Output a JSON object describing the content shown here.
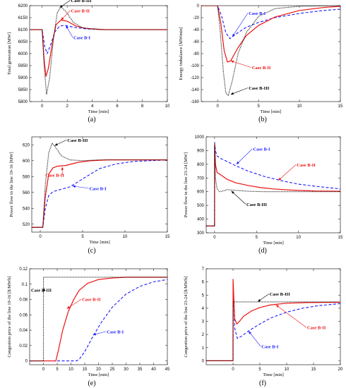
{
  "series_styles": [
    {
      "name": "Case B-I",
      "color": "#1a1aff",
      "dash": "4,2.5",
      "width": 1.1
    },
    {
      "name": "Case B-II",
      "color": "#ee1111",
      "dash": "",
      "width": 1.2
    },
    {
      "name": "Case B-III",
      "color": "#000000",
      "dash": "1,1.2",
      "width": 1.1
    }
  ],
  "chart_data": [
    {
      "id": "a",
      "type": "line",
      "panel_label": "(a)",
      "ylabel": "Total generation [MW]",
      "xlabel": "Time [min]",
      "xlim": [
        -1,
        10
      ],
      "ylim": [
        5800,
        6200
      ],
      "xticks": [
        0,
        2,
        4,
        6,
        8,
        10
      ],
      "yticks": [
        5800,
        5850,
        5900,
        5950,
        6000,
        6050,
        6100,
        6150,
        6200
      ],
      "series": [
        {
          "name": "Case B-I",
          "x": [
            -1,
            0,
            0.2,
            0.4,
            0.7,
            1.0,
            1.4,
            1.8,
            2.5,
            3.5,
            5,
            7,
            10
          ],
          "y": [
            6100,
            6100,
            6030,
            6000,
            6040,
            6090,
            6115,
            6118,
            6110,
            6103,
            6100,
            6100,
            6100
          ]
        },
        {
          "name": "Case B-II",
          "x": [
            -1,
            0,
            0.15,
            0.3,
            0.5,
            0.8,
            1.1,
            1.5,
            2.0,
            2.7,
            3.5,
            5,
            7,
            10
          ],
          "y": [
            6100,
            6100,
            5980,
            5905,
            5940,
            6040,
            6120,
            6140,
            6135,
            6115,
            6105,
            6100,
            6100,
            6100
          ]
        },
        {
          "name": "Case B-III",
          "x": [
            -1,
            0,
            0.15,
            0.35,
            0.6,
            0.9,
            1.2,
            1.5,
            1.9,
            2.5,
            3.2,
            4.5,
            6,
            10
          ],
          "y": [
            6100,
            6100,
            5950,
            5830,
            5900,
            6060,
            6170,
            6195,
            6175,
            6130,
            6108,
            6100,
            6100,
            6100
          ]
        }
      ],
      "annotations": [
        {
          "text": "Case B-III",
          "series": "Case B-III",
          "at": [
            2.3,
            6215
          ],
          "arrow_to": [
            1.4,
            6192
          ]
        },
        {
          "text": "Case B-II",
          "series": "Case B-II",
          "at": [
            2.3,
            6172
          ],
          "arrow_to": [
            1.5,
            6140
          ]
        },
        {
          "text": "Case B-I",
          "series": "Case B-I",
          "at": [
            2.5,
            6060
          ],
          "arrow_to": [
            1.9,
            6117
          ]
        }
      ]
    },
    {
      "id": "b",
      "type": "line",
      "panel_label": "(b)",
      "ylabel": "Energy imbalance [MWmin]",
      "xlabel": "Time [min]",
      "xlim": [
        -2,
        15
      ],
      "ylim": [
        -160,
        0
      ],
      "xticks": [
        0,
        5,
        10,
        15
      ],
      "yticks": [
        -160,
        -140,
        -120,
        -100,
        -80,
        -60,
        -40,
        -20,
        0
      ],
      "series": [
        {
          "name": "Case B-I",
          "x": [
            -2,
            0,
            0.5,
            1.0,
            1.5,
            2.5,
            3.5,
            5,
            7,
            10,
            13,
            15
          ],
          "y": [
            0,
            0,
            -18,
            -45,
            -55,
            -45,
            -36,
            -28,
            -20,
            -13,
            -8,
            -6
          ]
        },
        {
          "name": "Case B-II",
          "x": [
            -2,
            0,
            0.4,
            0.8,
            1.2,
            1.6,
            2.5,
            3.5,
            5,
            7,
            10,
            13,
            15
          ],
          "y": [
            0,
            0,
            -30,
            -75,
            -94,
            -92,
            -70,
            -50,
            -33,
            -19,
            -8,
            -3,
            -1
          ]
        },
        {
          "name": "Case B-III",
          "x": [
            -2,
            0,
            0.3,
            0.7,
            1.0,
            1.3,
            1.8,
            2.5,
            3.5,
            5,
            7,
            10,
            15
          ],
          "y": [
            0,
            0,
            -40,
            -110,
            -145,
            -150,
            -125,
            -80,
            -45,
            -18,
            -5,
            -1,
            0
          ]
        }
      ],
      "annotations": [
        {
          "text": "Case B-I",
          "series": "Case B-I",
          "at": [
            3.8,
            -15
          ],
          "arrow_to": [
            1.8,
            -52
          ]
        },
        {
          "text": "Case B-II",
          "series": "Case B-II",
          "at": [
            4.2,
            -106
          ],
          "arrow_to": [
            1.6,
            -92
          ]
        },
        {
          "text": "Case B-III",
          "series": "Case B-III",
          "at": [
            3.8,
            -140
          ],
          "arrow_to": [
            1.6,
            -148
          ]
        }
      ]
    },
    {
      "id": "c",
      "type": "line",
      "panel_label": "(c)",
      "ylabel": "Power flow in the line 19-16 [MW]",
      "xlabel": "Time [min]",
      "xlim": [
        -1,
        15
      ],
      "ylim": [
        510,
        630
      ],
      "xticks": [
        0,
        5,
        10,
        15
      ],
      "yticks": [
        520,
        540,
        560,
        580,
        600,
        620
      ],
      "series": [
        {
          "name": "Case B-I",
          "x": [
            -1,
            0,
            0.3,
            0.6,
            1.0,
            1.5,
            2.5,
            3.5,
            5,
            7,
            9,
            11,
            13,
            15
          ],
          "y": [
            516,
            516,
            516,
            540,
            556,
            561,
            564,
            567,
            577,
            590,
            596,
            599,
            600,
            601
          ]
        },
        {
          "name": "Case B-II",
          "x": [
            -1,
            0,
            0.3,
            0.6,
            1.0,
            1.5,
            2.0,
            3.0,
            4.5,
            6,
            8,
            10,
            15
          ],
          "y": [
            516,
            516,
            516,
            555,
            583,
            591,
            593,
            594,
            598,
            600,
            601,
            601,
            601
          ]
        },
        {
          "name": "Case B-III",
          "x": [
            -1,
            0,
            0.3,
            0.6,
            1.0,
            1.4,
            1.8,
            2.5,
            3.5,
            5,
            7,
            10,
            15
          ],
          "y": [
            516,
            516,
            516,
            570,
            610,
            622,
            617,
            606,
            601,
            600,
            601,
            601,
            601
          ]
        }
      ],
      "annotations": [
        {
          "text": "Case B-III",
          "series": "Case B-III",
          "at": [
            3.2,
            624
          ],
          "arrow_to": [
            1.7,
            619
          ]
        },
        {
          "text": "Case B-II",
          "series": "Case B-II",
          "at": [
            0.6,
            580
          ],
          "arrow_to": [
            2.6,
            592
          ]
        },
        {
          "text": "Case B-I",
          "series": "Case B-I",
          "at": [
            5.8,
            563
          ],
          "arrow_to": [
            3.8,
            568
          ]
        }
      ]
    },
    {
      "id": "d",
      "type": "line",
      "panel_label": "(d)",
      "ylabel": "Power flow in the line 23-24 [MW]",
      "xlabel": "Time [min]",
      "xlim": [
        -1,
        15
      ],
      "ylim": [
        300,
        1000
      ],
      "xticks": [
        0,
        5,
        10,
        15
      ],
      "yticks": [
        300,
        400,
        500,
        600,
        700,
        800,
        900,
        1000
      ],
      "series": [
        {
          "name": "Case B-I",
          "x": [
            -1,
            0,
            0.01,
            0.1,
            0.3,
            0.8,
            1.5,
            2.5,
            4,
            6,
            8,
            10,
            12,
            15
          ],
          "y": [
            350,
            350,
            960,
            900,
            860,
            840,
            820,
            790,
            750,
            710,
            680,
            655,
            640,
            620
          ]
        },
        {
          "name": "Case B-II",
          "x": [
            -1,
            0,
            0.01,
            0.1,
            0.3,
            0.8,
            1.5,
            2.5,
            4,
            5.5,
            7,
            9,
            12,
            15
          ],
          "y": [
            350,
            350,
            950,
            800,
            740,
            720,
            690,
            665,
            645,
            630,
            620,
            612,
            605,
            603
          ]
        },
        {
          "name": "Case B-III",
          "x": [
            -1,
            0,
            0.01,
            0.1,
            0.3,
            0.6,
            1.0,
            1.5,
            2.5,
            4,
            6,
            10,
            15
          ],
          "y": [
            350,
            350,
            940,
            700,
            620,
            600,
            605,
            615,
            610,
            603,
            600,
            600,
            600
          ]
        }
      ],
      "annotations": [
        {
          "text": "Case B-I",
          "series": "Case B-I",
          "at": [
            4.6,
            900
          ],
          "arrow_to": [
            2.6,
            800
          ]
        },
        {
          "text": "Case B-II",
          "series": "Case B-II",
          "at": [
            9.8,
            785
          ],
          "arrow_to": [
            7.6,
            682
          ]
        },
        {
          "text": "Case B-III",
          "series": "Case B-III",
          "at": [
            3.8,
            495
          ],
          "arrow_to": [
            2.0,
            605
          ]
        }
      ]
    },
    {
      "id": "e",
      "type": "line",
      "panel_label": "(e)",
      "ylabel": "Congestion price of the line 19-16 [$/MWh]",
      "xlabel": "Time [min]",
      "xlim": [
        -5,
        45
      ],
      "ylim": [
        -0.005,
        0.12
      ],
      "xticks": [
        0,
        5,
        10,
        15,
        20,
        25,
        30,
        35,
        40,
        45
      ],
      "yticks": [
        0,
        0.02,
        0.04,
        0.06,
        0.08,
        0.1,
        0.12
      ],
      "series": [
        {
          "name": "Case B-I",
          "x": [
            -5,
            0,
            12,
            13,
            15,
            18,
            21,
            25,
            30,
            35,
            40,
            45
          ],
          "y": [
            0,
            0,
            0,
            0.002,
            0.012,
            0.032,
            0.05,
            0.07,
            0.087,
            0.097,
            0.103,
            0.106
          ]
        },
        {
          "name": "Case B-II",
          "x": [
            -5,
            0,
            4.5,
            5.5,
            7,
            9,
            11,
            13,
            16,
            20,
            25,
            30,
            45
          ],
          "y": [
            0,
            0,
            0,
            0.015,
            0.04,
            0.064,
            0.08,
            0.092,
            0.101,
            0.106,
            0.108,
            0.109,
            0.109
          ]
        },
        {
          "name": "Case B-III",
          "x": [
            -5,
            0,
            0.01,
            45
          ],
          "y": [
            0,
            0,
            0.109,
            0.109
          ]
        }
      ],
      "annotations": [
        {
          "text": "Case B-III",
          "series": "Case B-III",
          "at": [
            -4.5,
            0.09
          ],
          "arrow_to": [
            0.2,
            0.095
          ]
        },
        {
          "text": "Case B-II",
          "series": "Case B-II",
          "at": [
            14,
            0.078
          ],
          "arrow_to": [
            8.5,
            0.068
          ]
        },
        {
          "text": "Case B-I",
          "series": "Case B-I",
          "at": [
            23,
            0.036
          ],
          "arrow_to": [
            18,
            0.034
          ]
        }
      ]
    },
    {
      "id": "f",
      "type": "line",
      "panel_label": "(f)",
      "ylabel": "Congestion price of the line 23-24 [$/MWh]",
      "xlabel": "Time [min]",
      "xlim": [
        -5,
        20
      ],
      "ylim": [
        -0.3,
        7
      ],
      "xticks": [
        0,
        5,
        10,
        15,
        20
      ],
      "yticks": [
        0,
        1,
        2,
        3,
        4,
        5,
        6,
        7
      ],
      "series": [
        {
          "name": "Case B-I",
          "x": [
            -5,
            0,
            0.01,
            0.3,
            0.8,
            1.5,
            3,
            5,
            7,
            10,
            13,
            16,
            20
          ],
          "y": [
            0,
            0,
            6.0,
            2.5,
            1.7,
            1.85,
            2.3,
            2.8,
            3.25,
            3.7,
            4.0,
            4.2,
            4.35
          ]
        },
        {
          "name": "Case B-II",
          "x": [
            -5,
            0,
            0.01,
            0.3,
            0.7,
            1.2,
            2,
            3.5,
            5,
            7,
            10,
            14,
            20
          ],
          "y": [
            0,
            0,
            6.2,
            3.2,
            2.8,
            3.0,
            3.4,
            3.8,
            4.05,
            4.25,
            4.38,
            4.43,
            4.45
          ]
        },
        {
          "name": "Case B-III",
          "x": [
            -5,
            0,
            0.01,
            20
          ],
          "y": [
            0,
            0,
            4.48,
            4.48
          ]
        }
      ],
      "annotations": [
        {
          "text": "Case B-III",
          "series": "Case B-III",
          "at": [
            6.8,
            4.95
          ],
          "arrow_to": [
            4.6,
            4.5
          ]
        },
        {
          "text": "Case B-II",
          "series": "Case B-II",
          "at": [
            13.8,
            2.4
          ],
          "arrow_to": [
            8,
            4.25
          ]
        },
        {
          "text": "Case B-I",
          "series": "Case B-I",
          "at": [
            5.3,
            0.95
          ],
          "arrow_to": [
            2.9,
            2.25
          ]
        }
      ]
    }
  ]
}
